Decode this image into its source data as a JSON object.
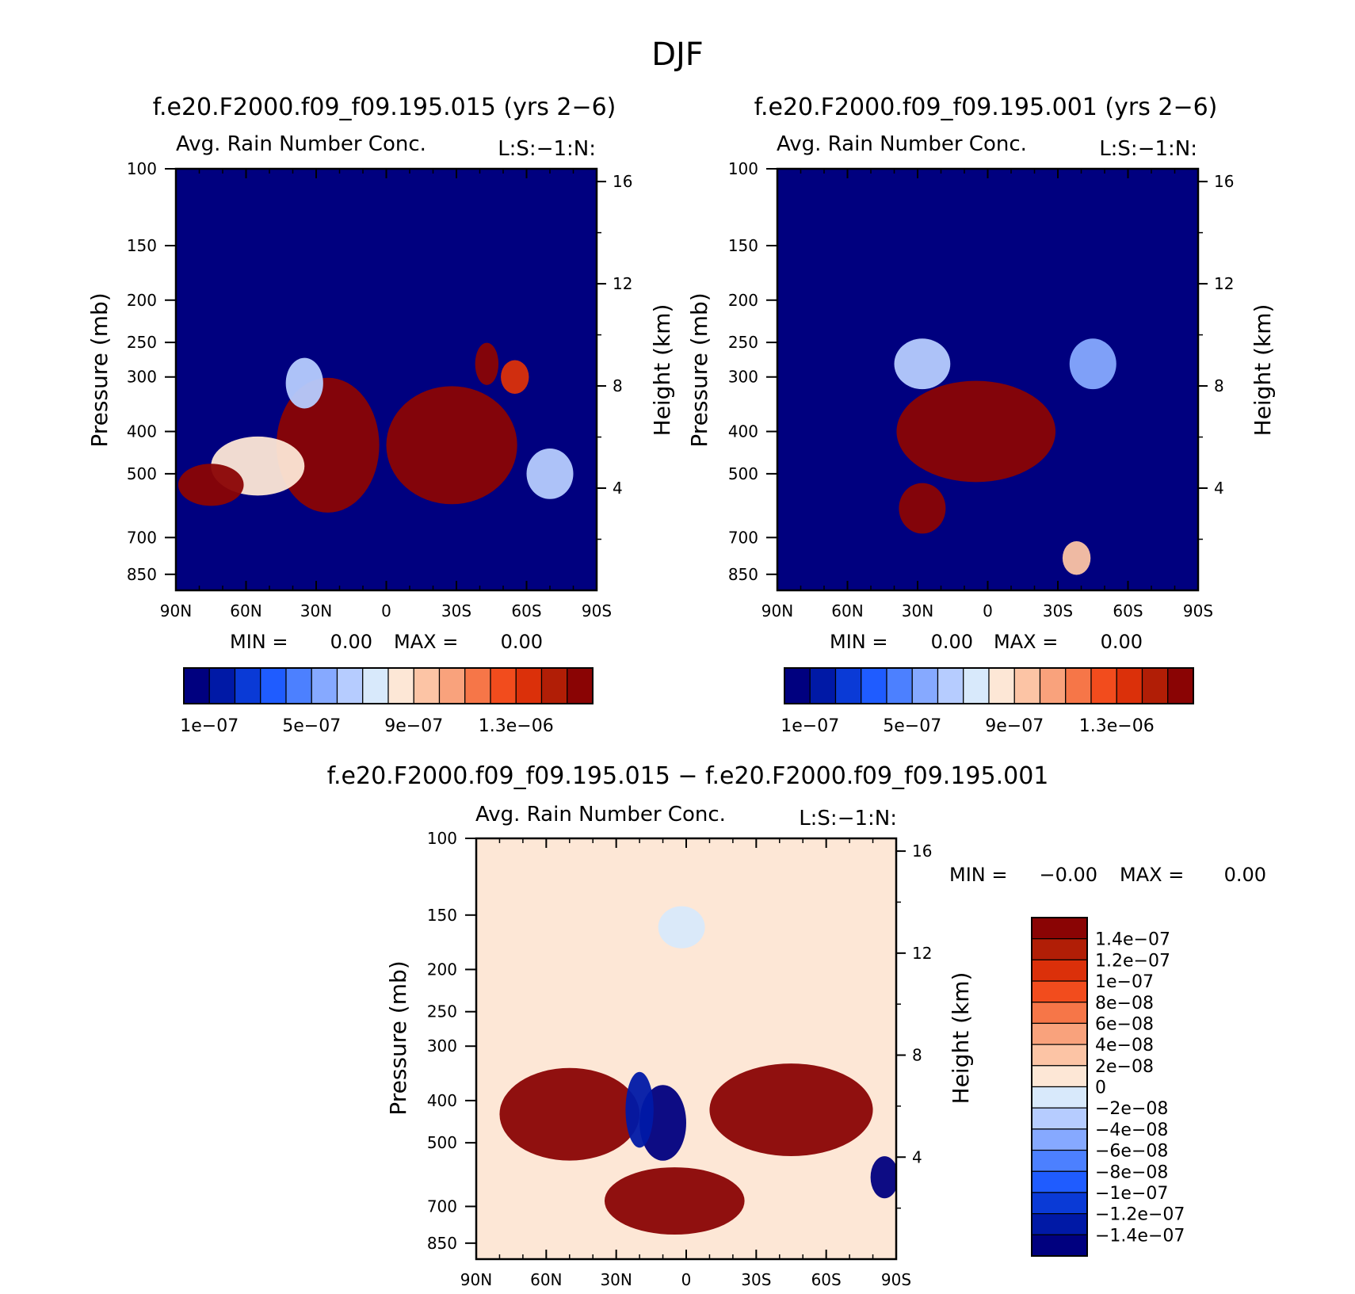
{
  "figure": {
    "title": "DJF"
  },
  "palettes": {
    "seq": [
      "#00007f",
      "#0019a6",
      "#0a3ad6",
      "#1f5cff",
      "#4c80ff",
      "#86a9ff",
      "#b6ccff",
      "#d8e9fb",
      "#fde7d6",
      "#fcc4a5",
      "#f9a27c",
      "#f67648",
      "#f24c1d",
      "#db300a",
      "#b11e06",
      "#8a0404"
    ],
    "div": [
      "#00007f",
      "#0019a6",
      "#0a3ad6",
      "#1f5cff",
      "#4c80ff",
      "#86a9ff",
      "#b6ccff",
      "#d8e9fb",
      "#fde7d6",
      "#fcc4a5",
      "#f9a27c",
      "#f67648",
      "#f24c1d",
      "#db300a",
      "#b11e06",
      "#8a0404"
    ]
  },
  "chart_data": [
    {
      "type": "heatmap",
      "title": "f.e20.F2000.f09_f09.195.015 (yrs 2−6)",
      "subtitle_left": "Avg. Rain Number Conc.",
      "subtitle_right": "L:S:−1:N:",
      "ylabel": "Pressure (mb)",
      "ylabel_right": "Height (km)",
      "x_ticks": [
        "90N",
        "60N",
        "30N",
        "0",
        "30S",
        "60S",
        "90S"
      ],
      "y_ticks": [
        "100",
        "150",
        "200",
        "250",
        "300",
        "400",
        "500",
        "700",
        "850"
      ],
      "y_right_ticks": [
        "16",
        "12",
        "8",
        "4"
      ],
      "stats": {
        "min_label": "MIN =",
        "min": "0.00",
        "max_label": "MAX =",
        "max": "0.00"
      },
      "colorbar_labels": [
        "1e−07",
        "5e−07",
        "9e−07",
        "1.3e−06"
      ],
      "field": {
        "background_level": 0,
        "blobs": [
          {
            "lat": 25,
            "p": 430,
            "w": 22,
            "h": 16,
            "level": 15
          },
          {
            "lat": -28,
            "p": 430,
            "w": 28,
            "h": 14,
            "level": 15
          },
          {
            "lat": 55,
            "p": 480,
            "w": 20,
            "h": 7,
            "level": 8
          },
          {
            "lat": 75,
            "p": 530,
            "w": 14,
            "h": 5,
            "level": 15
          },
          {
            "lat": 35,
            "p": 310,
            "w": 8,
            "h": 6,
            "level": 6
          },
          {
            "lat": -43,
            "p": 280,
            "w": 5,
            "h": 5,
            "level": 15
          },
          {
            "lat": -55,
            "p": 300,
            "w": 6,
            "h": 4,
            "level": 13
          },
          {
            "lat": -70,
            "p": 500,
            "w": 10,
            "h": 6,
            "level": 6
          }
        ]
      }
    },
    {
      "type": "heatmap",
      "title": "f.e20.F2000.f09_f09.195.001 (yrs 2−6)",
      "subtitle_left": "Avg. Rain Number Conc.",
      "subtitle_right": "L:S:−1:N:",
      "ylabel": "Pressure (mb)",
      "ylabel_right": "Height (km)",
      "x_ticks": [
        "90N",
        "60N",
        "30N",
        "0",
        "30S",
        "60S",
        "90S"
      ],
      "y_ticks": [
        "100",
        "150",
        "200",
        "250",
        "300",
        "400",
        "500",
        "700",
        "850"
      ],
      "y_right_ticks": [
        "16",
        "12",
        "8",
        "4"
      ],
      "stats": {
        "min_label": "MIN =",
        "min": "0.00",
        "max_label": "MAX =",
        "max": "0.00"
      },
      "colorbar_labels": [
        "1e−07",
        "5e−07",
        "9e−07",
        "1.3e−06"
      ],
      "field": {
        "background_level": 0,
        "blobs": [
          {
            "lat": 5,
            "p": 400,
            "w": 34,
            "h": 12,
            "level": 15
          },
          {
            "lat": 28,
            "p": 600,
            "w": 10,
            "h": 6,
            "level": 15
          },
          {
            "lat": 28,
            "p": 280,
            "w": 12,
            "h": 6,
            "level": 6
          },
          {
            "lat": -45,
            "p": 280,
            "w": 10,
            "h": 6,
            "level": 5
          },
          {
            "lat": -38,
            "p": 780,
            "w": 6,
            "h": 4,
            "level": 9
          }
        ]
      }
    },
    {
      "type": "heatmap",
      "title": "f.e20.F2000.f09_f09.195.015 − f.e20.F2000.f09_f09.195.001",
      "subtitle_left": "Avg. Rain Number Conc.",
      "subtitle_right": "L:S:−1:N:",
      "ylabel": "Pressure (mb)",
      "ylabel_right": "Height (km)",
      "x_ticks": [
        "90N",
        "60N",
        "30N",
        "0",
        "30S",
        "60S",
        "90S"
      ],
      "y_ticks": [
        "100",
        "150",
        "200",
        "250",
        "300",
        "400",
        "500",
        "700",
        "850"
      ],
      "y_right_ticks": [
        "16",
        "12",
        "8",
        "4"
      ],
      "stats": {
        "min_label": "MIN =",
        "min": "−0.00",
        "max_label": "MAX =",
        "max": "0.00"
      },
      "colorbar_labels": [
        "1.4e−07",
        "1.2e−07",
        "1e−07",
        "8e−08",
        "6e−08",
        "4e−08",
        "2e−08",
        "0",
        "−2e−08",
        "−4e−08",
        "−6e−08",
        "−8e−08",
        "−1e−07",
        "−1.2e−07",
        "−1.4e−07"
      ],
      "field": {
        "background_level": 8,
        "blobs": [
          {
            "lat": 50,
            "p": 430,
            "w": 30,
            "h": 11,
            "level": 15
          },
          {
            "lat": -45,
            "p": 420,
            "w": 35,
            "h": 11,
            "level": 15
          },
          {
            "lat": 5,
            "p": 680,
            "w": 30,
            "h": 8,
            "level": 15
          },
          {
            "lat": 10,
            "p": 450,
            "w": 10,
            "h": 9,
            "level": 0
          },
          {
            "lat": 20,
            "p": 420,
            "w": 6,
            "h": 9,
            "level": 1
          },
          {
            "lat": 2,
            "p": 160,
            "w": 10,
            "h": 5,
            "level": 7
          },
          {
            "lat": -85,
            "p": 600,
            "w": 6,
            "h": 5,
            "level": 0
          }
        ]
      }
    }
  ]
}
